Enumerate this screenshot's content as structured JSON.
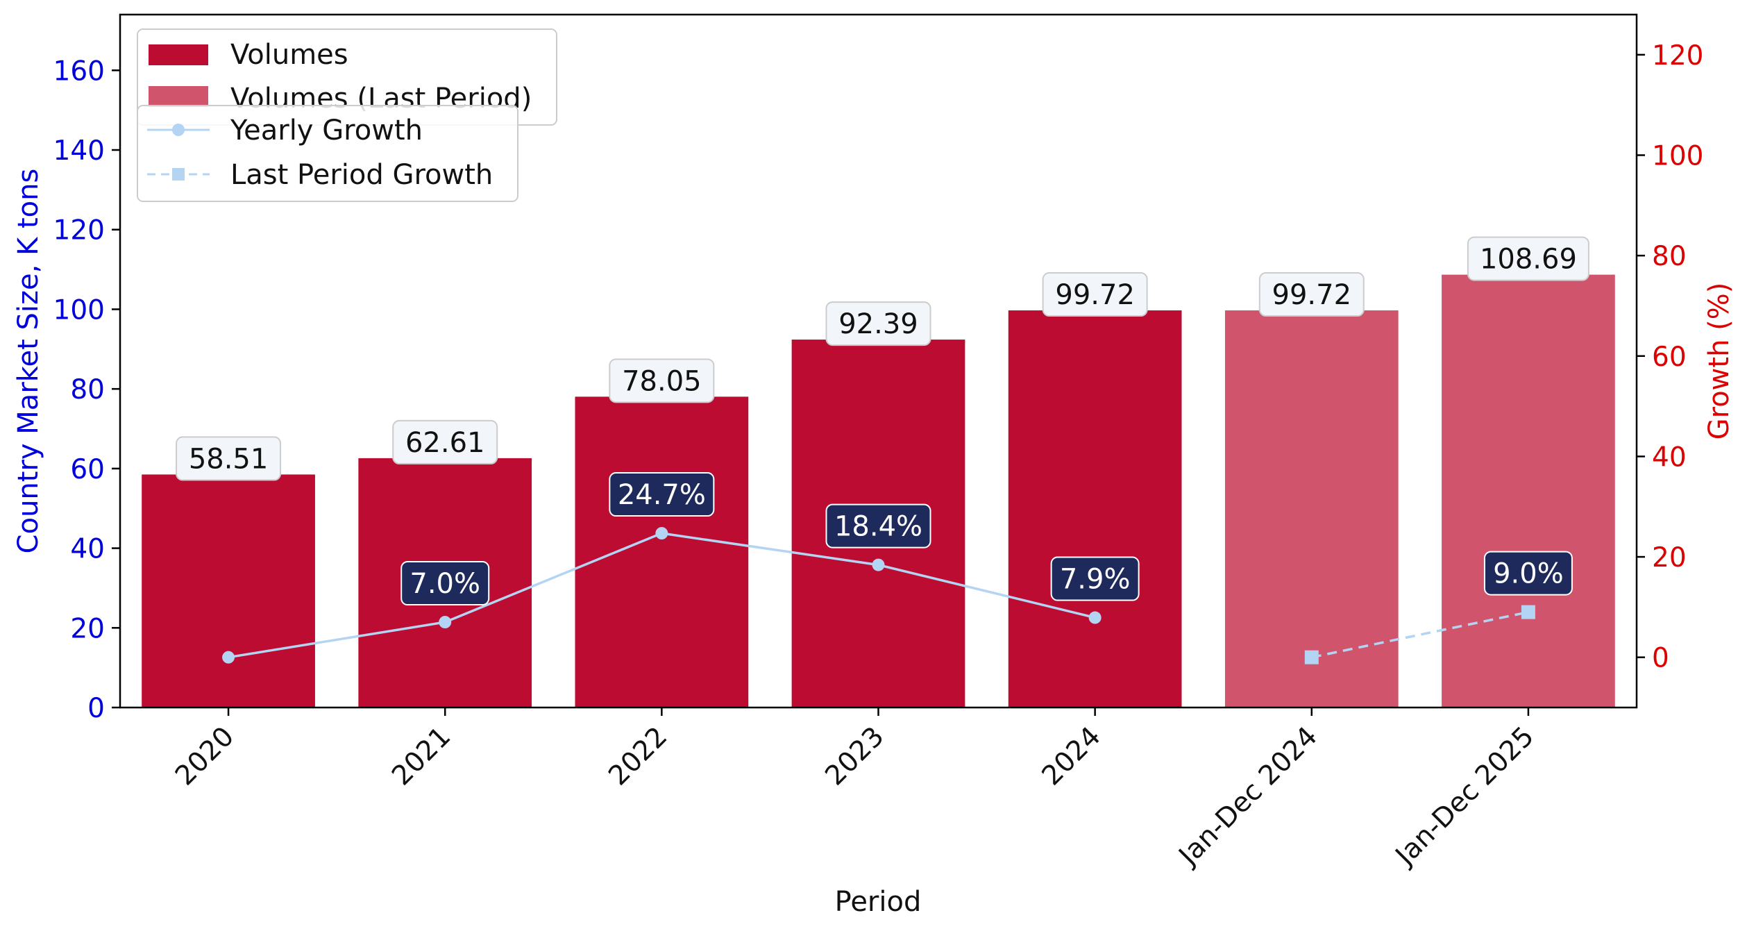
{
  "colors": {
    "bar": "#BC0C32",
    "bar_last_period": "#D0546C",
    "growth_line": "#B4D4F4",
    "growth_label_bg": "#1F2A5C",
    "value_label_bg": "#F2F6FA",
    "left_axis": "#0000DD",
    "right_axis": "#DD0000"
  },
  "chart_data": {
    "type": "bar",
    "categories": [
      "2020",
      "2021",
      "2022",
      "2023",
      "2024",
      "Jan-Dec 2024",
      "Jan-Dec 2025"
    ],
    "series": [
      {
        "name": "Volumes",
        "kind": "bar",
        "axis": "left",
        "values": [
          58.51,
          62.61,
          78.05,
          92.39,
          99.72,
          null,
          null
        ]
      },
      {
        "name": "Volumes (Last Period)",
        "kind": "bar",
        "axis": "left",
        "values": [
          null,
          null,
          null,
          null,
          null,
          99.72,
          108.69
        ]
      },
      {
        "name": "Yearly Growth",
        "kind": "line",
        "axis": "right",
        "marker": "circle",
        "style": "solid",
        "values": [
          0,
          7.0,
          24.7,
          18.4,
          7.9,
          null,
          null
        ]
      },
      {
        "name": "Last Period Growth",
        "kind": "line",
        "axis": "right",
        "marker": "square",
        "style": "dashed",
        "values": [
          null,
          null,
          null,
          null,
          null,
          0,
          9.0
        ]
      }
    ],
    "value_labels": [
      "58.51",
      "62.61",
      "78.05",
      "92.39",
      "99.72",
      "99.72",
      "108.69"
    ],
    "growth_labels": [
      null,
      "7.0%",
      "24.7%",
      "18.4%",
      "7.9%",
      null,
      "9.0%"
    ],
    "xlabel": "Period",
    "ylabel": "Country Market Size, K tons",
    "y2label": "Growth (%)",
    "ylim": [
      0,
      174
    ],
    "y2lim": [
      -10,
      128
    ],
    "yticks": [
      0,
      20,
      40,
      60,
      80,
      100,
      120,
      140,
      160
    ],
    "y2ticks": [
      0,
      20,
      40,
      60,
      80,
      100,
      120
    ],
    "grid": false,
    "legend_placement": "top-left"
  }
}
